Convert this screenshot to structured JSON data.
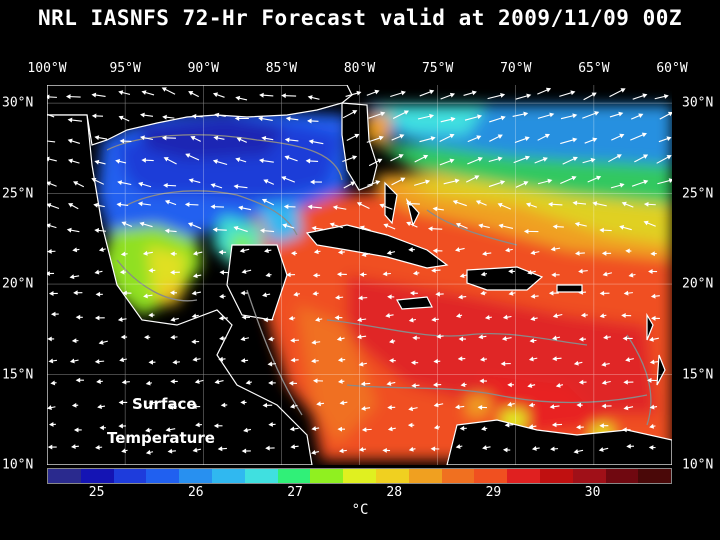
{
  "title": "NRL IASNFS  72-Hr Forecast valid at 2009/11/09 00Z",
  "lon_labels": [
    "100°W",
    "95°W",
    "90°W",
    "85°W",
    "80°W",
    "75°W",
    "70°W",
    "65°W",
    "60°W"
  ],
  "lat_labels": [
    "30°N",
    "25°N",
    "20°N",
    "15°N",
    "10°N"
  ],
  "map_annotation": [
    "Surface",
    "Temperature"
  ],
  "colorbar": {
    "tick_labels": [
      "25",
      "26",
      "27",
      "28",
      "29",
      "30"
    ],
    "unit": "°C",
    "colors": [
      "#2a2a8e",
      "#1414b4",
      "#1e3cdc",
      "#2060f0",
      "#2890f0",
      "#30b8f0",
      "#40e0e0",
      "#30f078",
      "#90f020",
      "#e0f020",
      "#f0d020",
      "#f0a020",
      "#f07020",
      "#f05020",
      "#e02020",
      "#c01010",
      "#a01018",
      "#700810",
      "#4a0808"
    ],
    "range": [
      24.5,
      30.8
    ]
  },
  "map_colors": {
    "land": "#000000",
    "coast": "#ffffff",
    "grid": "#ffffff",
    "bathymetry_contour": "#8a8a8a",
    "vector": "#ffffff"
  },
  "map_extent": {
    "lon": [
      -100,
      -60
    ],
    "lat": [
      10,
      31
    ]
  }
}
